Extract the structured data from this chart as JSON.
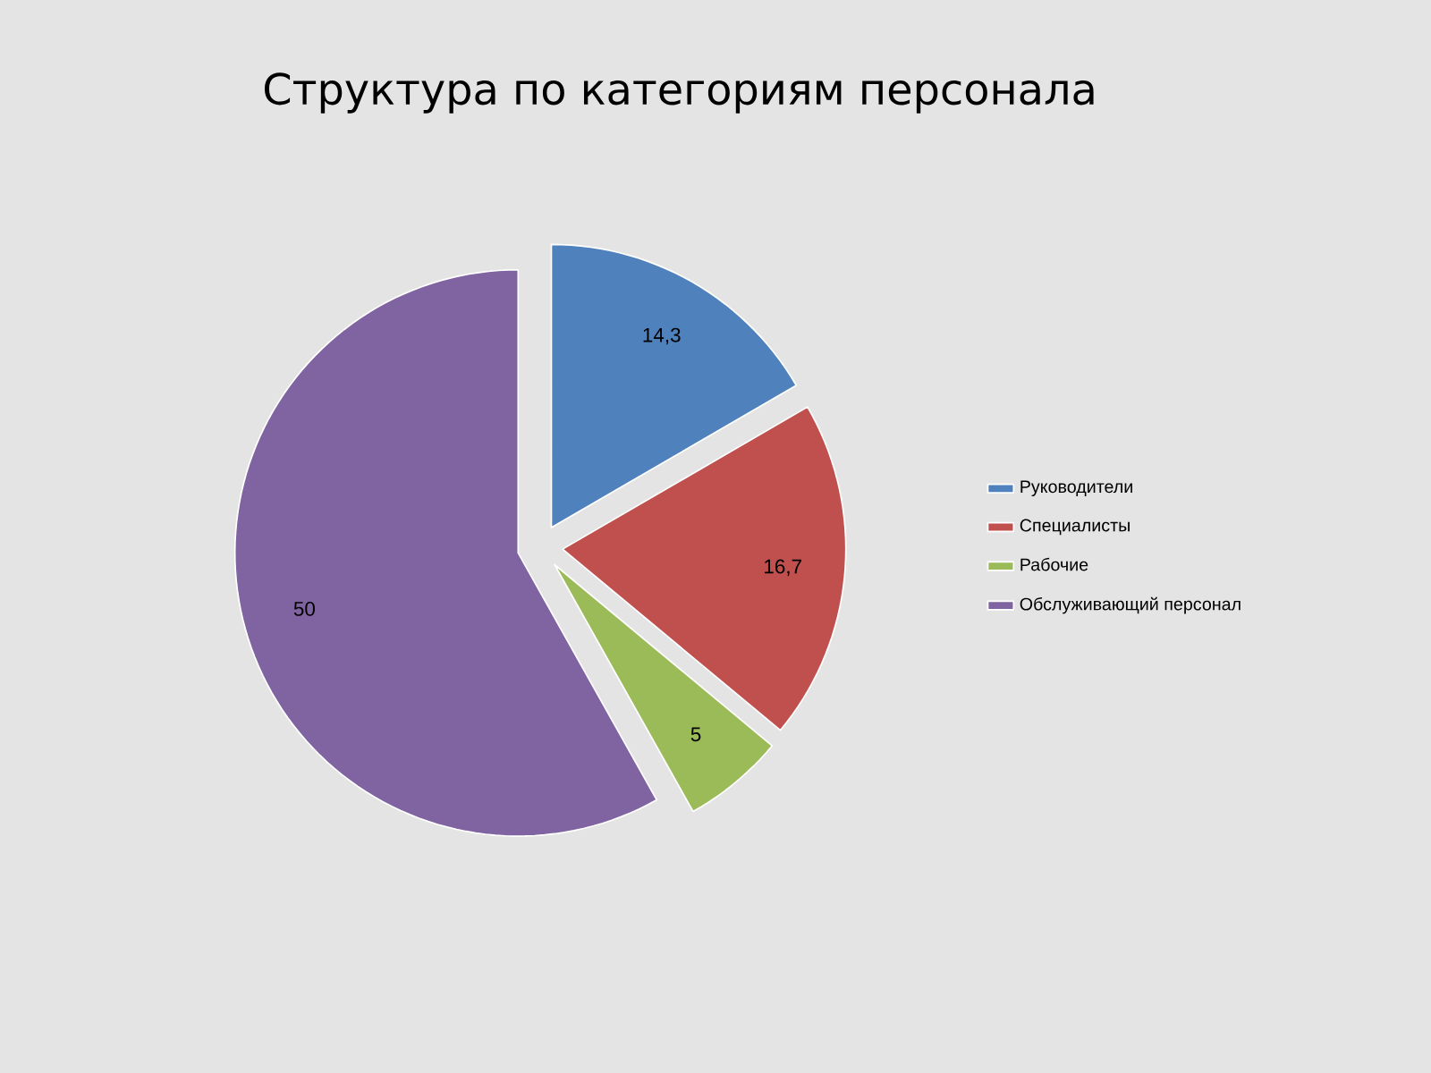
{
  "chart_data": {
    "type": "pie",
    "title": "Структура по категориям персонала",
    "categories": [
      "Руководители",
      "Специалисты",
      "Рабочие",
      "Обслуживающий персонал"
    ],
    "values": [
      14.3,
      16.7,
      5,
      50
    ],
    "value_labels": [
      "14,3",
      "16,7",
      "5",
      "50"
    ],
    "colors": [
      "#4f81bd",
      "#c0504d",
      "#9bbb59",
      "#8064a2"
    ],
    "legend": "right"
  }
}
